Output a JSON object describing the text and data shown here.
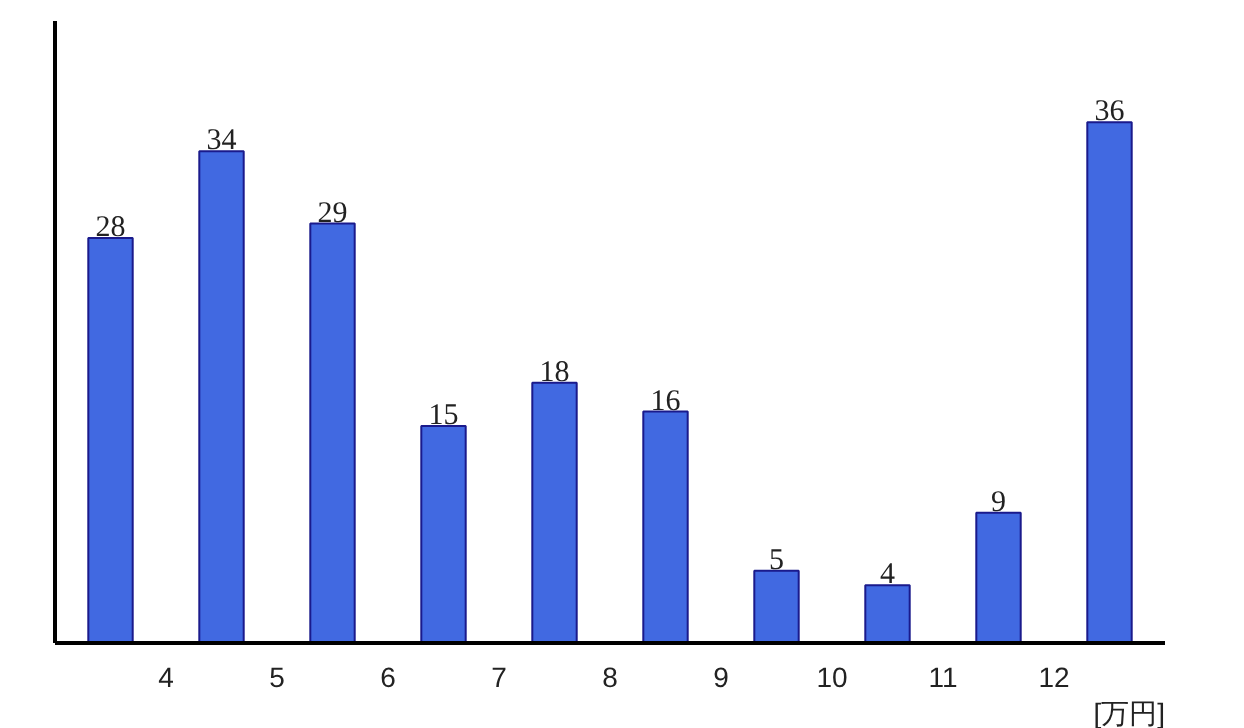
{
  "chart_data": {
    "type": "bar",
    "xlabel": "[万円]",
    "x": [
      3.5,
      4.5,
      5.5,
      6.5,
      7.5,
      8.5,
      9.5,
      10.5,
      11.5,
      12.5
    ],
    "values": [
      28,
      34,
      29,
      15,
      18,
      16,
      5,
      4,
      9,
      36
    ],
    "color": "#4169e1",
    "xlim": [
      3,
      13
    ],
    "ylim": [
      0,
      43
    ],
    "xticks": [
      4,
      5,
      6,
      7,
      8,
      9,
      10,
      11,
      12
    ],
    "tick_labels": "x",
    "data_labels": true
  }
}
